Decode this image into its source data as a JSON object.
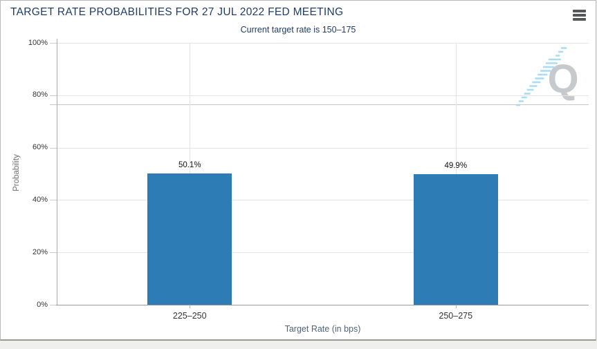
{
  "header": {
    "title": "TARGET RATE PROBABILITIES FOR 27 JUL 2022 FED MEETING",
    "subtitle": "Current target rate is 150–175"
  },
  "watermark": {
    "letter": "Q"
  },
  "chart_data": {
    "type": "bar",
    "title": "TARGET RATE PROBABILITIES FOR 27 JUL 2022 FED MEETING",
    "subtitle": "Current target rate is 150–175",
    "categories": [
      "225–250",
      "250–275"
    ],
    "values": [
      50.1,
      49.9
    ],
    "bar_labels": [
      "50.1%",
      "49.9%"
    ],
    "xlabel": "Target Rate (in bps)",
    "ylabel": "Probability",
    "ylim": [
      0,
      100
    ],
    "yticks": [
      0,
      20,
      40,
      60,
      80,
      100
    ],
    "ytick_labels": [
      "0%",
      "20%",
      "40%",
      "60%",
      "80%",
      "100%"
    ],
    "grid": true,
    "legend": false,
    "extra_gridline_percent": 76.5,
    "bar_color": "#2d7cb5"
  },
  "colors": {
    "accent_navy": "#1f3c68",
    "bar": "#2d7cb5",
    "watermark_gray": "#c7cacc",
    "watermark_blue": "#a8ddf4"
  }
}
